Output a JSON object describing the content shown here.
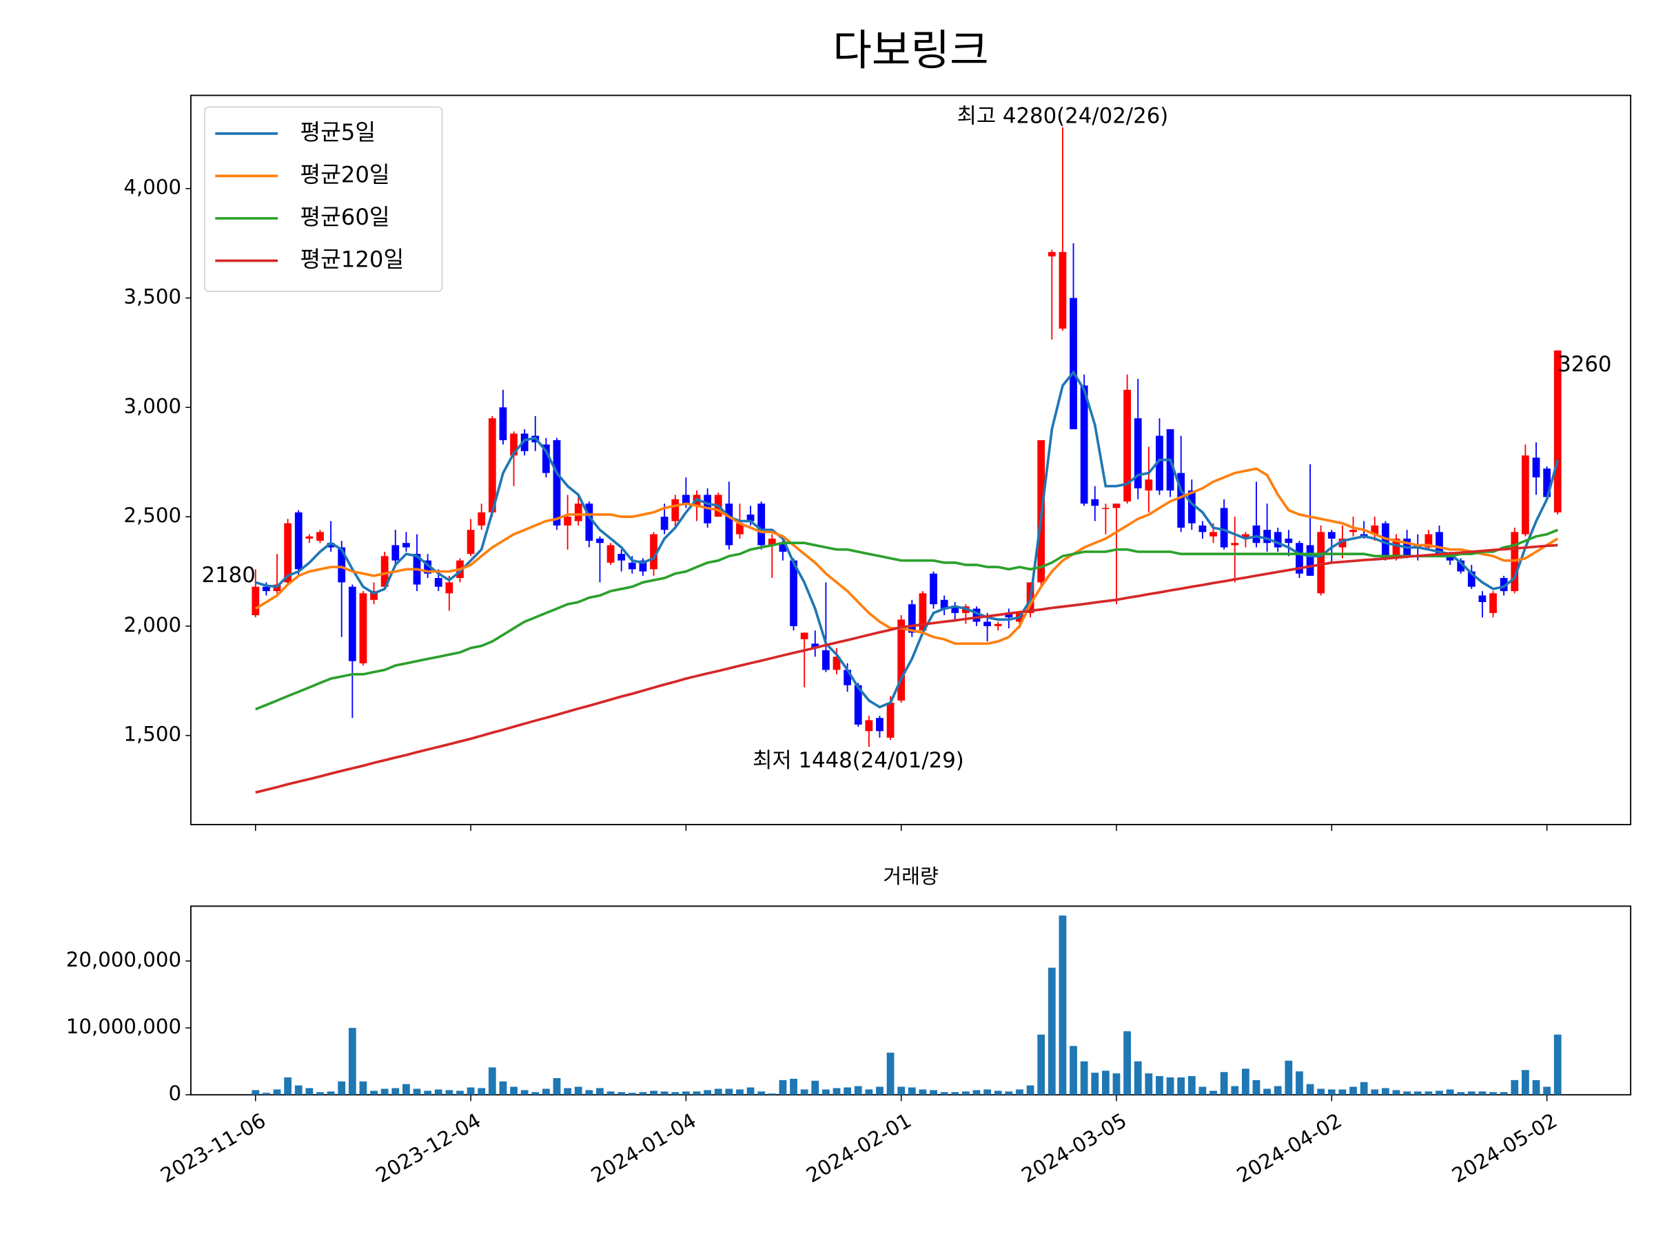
{
  "chart_data": {
    "type": "candlestick",
    "title": "다보링크",
    "volume_title": "거래량",
    "x": [
      "2023-11-06",
      "2023-11-07",
      "2023-11-08",
      "2023-11-09",
      "2023-11-10",
      "2023-11-13",
      "2023-11-14",
      "2023-11-15",
      "2023-11-16",
      "2023-11-17",
      "2023-11-20",
      "2023-11-21",
      "2023-11-22",
      "2023-11-23",
      "2023-11-24",
      "2023-11-27",
      "2023-11-28",
      "2023-11-29",
      "2023-11-30",
      "2023-12-01",
      "2023-12-04",
      "2023-12-05",
      "2023-12-06",
      "2023-12-07",
      "2023-12-08",
      "2023-12-11",
      "2023-12-12",
      "2023-12-13",
      "2023-12-14",
      "2023-12-15",
      "2023-12-18",
      "2023-12-19",
      "2023-12-20",
      "2023-12-21",
      "2023-12-22",
      "2023-12-26",
      "2023-12-27",
      "2023-12-28",
      "2024-01-02",
      "2024-01-03",
      "2024-01-04",
      "2024-01-05",
      "2024-01-08",
      "2024-01-09",
      "2024-01-10",
      "2024-01-11",
      "2024-01-12",
      "2024-01-15",
      "2024-01-16",
      "2024-01-17",
      "2024-01-18",
      "2024-01-19",
      "2024-01-22",
      "2024-01-23",
      "2024-01-24",
      "2024-01-25",
      "2024-01-26",
      "2024-01-29",
      "2024-01-30",
      "2024-01-31",
      "2024-02-01",
      "2024-02-02",
      "2024-02-05",
      "2024-02-06",
      "2024-02-07",
      "2024-02-08",
      "2024-02-13",
      "2024-02-14",
      "2024-02-15",
      "2024-02-16",
      "2024-02-19",
      "2024-02-20",
      "2024-02-21",
      "2024-02-22",
      "2024-02-23",
      "2024-02-26",
      "2024-02-27",
      "2024-02-28",
      "2024-02-29",
      "2024-03-04",
      "2024-03-05",
      "2024-03-06",
      "2024-03-07",
      "2024-03-08",
      "2024-03-11",
      "2024-03-12",
      "2024-03-13",
      "2024-03-14",
      "2024-03-15",
      "2024-03-18",
      "2024-03-19",
      "2024-03-20",
      "2024-03-21",
      "2024-03-22",
      "2024-03-25",
      "2024-03-26",
      "2024-03-27",
      "2024-03-28",
      "2024-03-29",
      "2024-04-01",
      "2024-04-02",
      "2024-04-03",
      "2024-04-04",
      "2024-04-05",
      "2024-04-08",
      "2024-04-09",
      "2024-04-11",
      "2024-04-12",
      "2024-04-15",
      "2024-04-16",
      "2024-04-17",
      "2024-04-18",
      "2024-04-19",
      "2024-04-22",
      "2024-04-23",
      "2024-04-24",
      "2024-04-25",
      "2024-04-26",
      "2024-04-29",
      "2024-04-30",
      "2024-05-02",
      "2024-05-03"
    ],
    "open": [
      2050,
      2180,
      2160,
      2200,
      2520,
      2400,
      2390,
      2380,
      2360,
      2180,
      1830,
      2120,
      2180,
      2370,
      2380,
      2330,
      2300,
      2220,
      2150,
      2220,
      2330,
      2460,
      2520,
      3000,
      2780,
      2880,
      2870,
      2830,
      2850,
      2460,
      2480,
      2560,
      2400,
      2290,
      2330,
      2290,
      2300,
      2260,
      2500,
      2480,
      2600,
      2550,
      2600,
      2500,
      2560,
      2420,
      2510,
      2560,
      2370,
      2380,
      2300,
      1940,
      1920,
      1890,
      1800,
      1800,
      1730,
      1520,
      1580,
      1490,
      1660,
      2100,
      1980,
      2240,
      2120,
      2090,
      2060,
      2080,
      2020,
      2000,
      2060,
      2020,
      2060,
      2200,
      3690,
      3360,
      3500,
      3100,
      2580,
      2540,
      2540,
      2570,
      2950,
      2620,
      2870,
      2900,
      2700,
      2620,
      2460,
      2410,
      2540,
      2370,
      2400,
      2460,
      2440,
      2430,
      2400,
      2380,
      2370,
      2150,
      2430,
      2360,
      2430,
      2420,
      2420,
      2470,
      2310,
      2400,
      2370,
      2360,
      2430,
      2330,
      2300,
      2250,
      2140,
      2060,
      2220,
      2160,
      2420,
      2770,
      2720,
      2520
    ],
    "high": [
      2260,
      2200,
      2330,
      2490,
      2530,
      2420,
      2440,
      2480,
      2390,
      2190,
      2160,
      2200,
      2340,
      2440,
      2430,
      2420,
      2330,
      2260,
      2230,
      2310,
      2490,
      2560,
      2960,
      3080,
      2890,
      2900,
      2960,
      2860,
      2860,
      2600,
      2600,
      2570,
      2410,
      2380,
      2350,
      2320,
      2310,
      2430,
      2560,
      2600,
      2680,
      2620,
      2630,
      2610,
      2660,
      2560,
      2550,
      2570,
      2420,
      2410,
      2310,
      1970,
      1980,
      2200,
      1900,
      1830,
      1740,
      1590,
      1590,
      1680,
      2050,
      2120,
      2160,
      2250,
      2140,
      2110,
      2100,
      2090,
      2060,
      2020,
      2080,
      2070,
      2200,
      2850,
      3720,
      4280,
      3750,
      3150,
      2640,
      2560,
      2560,
      3150,
      3130,
      2820,
      2950,
      2900,
      2870,
      2670,
      2480,
      2470,
      2580,
      2500,
      2430,
      2660,
      2560,
      2450,
      2440,
      2390,
      2740,
      2460,
      2440,
      2460,
      2500,
      2480,
      2500,
      2480,
      2420,
      2440,
      2420,
      2440,
      2460,
      2340,
      2310,
      2280,
      2160,
      2160,
      2230,
      2450,
      2830,
      2840,
      2730,
      3260
    ],
    "low": [
      2040,
      2140,
      2150,
      2190,
      2230,
      2380,
      2380,
      2340,
      1950,
      1580,
      1820,
      2100,
      2170,
      2280,
      2340,
      2160,
      2220,
      2160,
      2070,
      2200,
      2320,
      2440,
      2500,
      2830,
      2640,
      2780,
      2800,
      2680,
      2440,
      2350,
      2460,
      2360,
      2200,
      2280,
      2250,
      2240,
      2230,
      2230,
      2420,
      2450,
      2540,
      2480,
      2450,
      2500,
      2350,
      2400,
      2460,
      2350,
      2220,
      2300,
      1980,
      1720,
      1860,
      1790,
      1780,
      1700,
      1540,
      1448,
      1490,
      1480,
      1650,
      1950,
      1960,
      2080,
      2050,
      2020,
      2010,
      2000,
      1930,
      1980,
      1990,
      1990,
      2040,
      2180,
      3310,
      3350,
      2900,
      2550,
      2480,
      2420,
      2100,
      2560,
      2580,
      2520,
      2600,
      2590,
      2430,
      2440,
      2400,
      2380,
      2350,
      2200,
      2360,
      2360,
      2340,
      2340,
      2320,
      2220,
      2230,
      2140,
      2290,
      2310,
      2410,
      2400,
      2390,
      2300,
      2300,
      2310,
      2300,
      2350,
      2320,
      2280,
      2240,
      2170,
      2040,
      2040,
      2140,
      2150,
      2410,
      2600,
      2570,
      2510
    ],
    "close": [
      2180,
      2160,
      2190,
      2470,
      2260,
      2410,
      2430,
      2360,
      2200,
      1840,
      2150,
      2160,
      2320,
      2300,
      2360,
      2190,
      2240,
      2180,
      2200,
      2300,
      2440,
      2520,
      2950,
      2850,
      2880,
      2800,
      2840,
      2700,
      2460,
      2500,
      2560,
      2390,
      2380,
      2370,
      2300,
      2260,
      2250,
      2420,
      2440,
      2580,
      2560,
      2600,
      2470,
      2600,
      2370,
      2470,
      2480,
      2370,
      2400,
      2340,
      2000,
      1970,
      1900,
      1800,
      1860,
      1730,
      1550,
      1570,
      1520,
      1650,
      2030,
      1970,
      2150,
      2100,
      2080,
      2060,
      2090,
      2020,
      2000,
      2010,
      2040,
      2060,
      2200,
      2850,
      3710,
      3710,
      2900,
      2560,
      2550,
      2540,
      2560,
      3080,
      2630,
      2670,
      2620,
      2620,
      2450,
      2470,
      2430,
      2430,
      2360,
      2380,
      2420,
      2380,
      2380,
      2360,
      2380,
      2240,
      2230,
      2430,
      2400,
      2400,
      2440,
      2410,
      2460,
      2310,
      2400,
      2320,
      2360,
      2420,
      2330,
      2300,
      2250,
      2180,
      2110,
      2150,
      2160,
      2430,
      2780,
      2680,
      2590,
      3260
    ],
    "volume": [
      700000,
      300000,
      800000,
      2600000,
      1400000,
      1000000,
      400000,
      500000,
      2000000,
      10000000,
      2000000,
      600000,
      900000,
      1000000,
      1600000,
      900000,
      600000,
      800000,
      700000,
      600000,
      1100000,
      1000000,
      4100000,
      2000000,
      1200000,
      700000,
      400000,
      900000,
      2500000,
      1000000,
      1200000,
      700000,
      1000000,
      500000,
      400000,
      300000,
      400000,
      600000,
      500000,
      400000,
      500000,
      500000,
      700000,
      900000,
      900000,
      800000,
      1100000,
      500000,
      200000,
      2200000,
      2400000,
      800000,
      2100000,
      800000,
      1000000,
      1100000,
      1300000,
      800000,
      1200000,
      6300000,
      1200000,
      1100000,
      800000,
      700000,
      400000,
      400000,
      500000,
      700000,
      800000,
      600000,
      500000,
      800000,
      1400000,
      9000000,
      19000000,
      26800000,
      7300000,
      5000000,
      3300000,
      3600000,
      3200000,
      9500000,
      5000000,
      3200000,
      2800000,
      2600000,
      2600000,
      2800000,
      1200000,
      600000,
      3400000,
      1300000,
      3900000,
      2200000,
      900000,
      1300000,
      5100000,
      3500000,
      1600000,
      900000,
      800000,
      800000,
      1200000,
      1900000,
      800000,
      1000000,
      700000,
      500000,
      500000,
      500000,
      600000,
      800000,
      400000,
      500000,
      500000,
      400000,
      400000,
      2200000,
      3700000,
      2200000,
      1200000,
      9000000
    ],
    "series": [
      {
        "name": "평균5일",
        "color": "#1f77b4",
        "values": [
          2200,
          2185,
          2180,
          2230,
          2250,
          2290,
          2340,
          2380,
          2350,
          2260,
          2180,
          2150,
          2170,
          2280,
          2330,
          2320,
          2280,
          2240,
          2210,
          2250,
          2300,
          2350,
          2520,
          2700,
          2790,
          2850,
          2860,
          2800,
          2700,
          2640,
          2600,
          2500,
          2440,
          2400,
          2360,
          2300,
          2290,
          2310,
          2400,
          2450,
          2520,
          2580,
          2560,
          2550,
          2500,
          2480,
          2480,
          2440,
          2440,
          2400,
          2290,
          2200,
          2080,
          1920,
          1870,
          1800,
          1720,
          1660,
          1630,
          1650,
          1760,
          1850,
          1970,
          2060,
          2080,
          2090,
          2080,
          2060,
          2040,
          2030,
          2030,
          2040,
          2120,
          2500,
          2900,
          3100,
          3160,
          3080,
          2920,
          2640,
          2640,
          2650,
          2690,
          2700,
          2760,
          2760,
          2620,
          2560,
          2520,
          2450,
          2440,
          2420,
          2400,
          2410,
          2400,
          2380,
          2360,
          2330,
          2320,
          2320,
          2360,
          2390,
          2400,
          2410,
          2400,
          2380,
          2370,
          2360,
          2360,
          2350,
          2340,
          2330,
          2290,
          2240,
          2200,
          2170,
          2180,
          2220,
          2360,
          2480,
          2580,
          2760
        ]
      },
      {
        "name": "평균20일",
        "color": "#ff7f0e",
        "values": [
          2080,
          2110,
          2140,
          2190,
          2230,
          2250,
          2260,
          2270,
          2270,
          2250,
          2240,
          2230,
          2240,
          2250,
          2260,
          2260,
          2250,
          2250,
          2250,
          2260,
          2280,
          2320,
          2360,
          2390,
          2420,
          2440,
          2460,
          2480,
          2490,
          2510,
          2510,
          2510,
          2510,
          2510,
          2500,
          2500,
          2510,
          2520,
          2540,
          2550,
          2560,
          2550,
          2540,
          2530,
          2500,
          2470,
          2450,
          2430,
          2430,
          2410,
          2370,
          2330,
          2290,
          2240,
          2200,
          2160,
          2110,
          2060,
          2020,
          1990,
          1990,
          1980,
          1970,
          1950,
          1940,
          1920,
          1920,
          1920,
          1920,
          1930,
          1950,
          2000,
          2100,
          2180,
          2250,
          2300,
          2330,
          2360,
          2380,
          2400,
          2430,
          2460,
          2490,
          2510,
          2540,
          2570,
          2590,
          2610,
          2630,
          2660,
          2680,
          2700,
          2710,
          2720,
          2690,
          2600,
          2530,
          2510,
          2500,
          2490,
          2480,
          2470,
          2450,
          2440,
          2420,
          2400,
          2390,
          2380,
          2370,
          2370,
          2360,
          2350,
          2350,
          2340,
          2330,
          2320,
          2300,
          2300,
          2310,
          2340,
          2370,
          2400
        ]
      },
      {
        "name": "평균60일",
        "color": "#2ca02c",
        "values": [
          1620,
          1640,
          1660,
          1680,
          1700,
          1720,
          1740,
          1760,
          1770,
          1780,
          1780,
          1790,
          1800,
          1820,
          1830,
          1840,
          1850,
          1860,
          1870,
          1880,
          1900,
          1910,
          1930,
          1960,
          1990,
          2020,
          2040,
          2060,
          2080,
          2100,
          2110,
          2130,
          2140,
          2160,
          2170,
          2180,
          2200,
          2210,
          2220,
          2240,
          2250,
          2270,
          2290,
          2300,
          2320,
          2330,
          2350,
          2360,
          2370,
          2380,
          2380,
          2380,
          2370,
          2360,
          2350,
          2350,
          2340,
          2330,
          2320,
          2310,
          2300,
          2300,
          2300,
          2300,
          2290,
          2290,
          2280,
          2280,
          2270,
          2270,
          2260,
          2270,
          2260,
          2270,
          2290,
          2320,
          2330,
          2340,
          2340,
          2340,
          2350,
          2350,
          2340,
          2340,
          2340,
          2340,
          2330,
          2330,
          2330,
          2330,
          2330,
          2330,
          2330,
          2330,
          2330,
          2330,
          2330,
          2330,
          2330,
          2330,
          2330,
          2330,
          2330,
          2330,
          2320,
          2320,
          2320,
          2320,
          2320,
          2320,
          2320,
          2320,
          2330,
          2330,
          2340,
          2340,
          2360,
          2370,
          2390,
          2410,
          2420,
          2440
        ]
      },
      {
        "name": "평균120일",
        "color": "#d62728",
        "values": [
          1240,
          1252,
          1264,
          1277,
          1289,
          1301,
          1313,
          1326,
          1338,
          1350,
          1362,
          1375,
          1387,
          1399,
          1411,
          1424,
          1436,
          1448,
          1460,
          1473,
          1485,
          1499,
          1513,
          1526,
          1540,
          1554,
          1568,
          1581,
          1595,
          1609,
          1623,
          1636,
          1650,
          1664,
          1678,
          1691,
          1705,
          1719,
          1733,
          1746,
          1760,
          1772,
          1784,
          1795,
          1807,
          1819,
          1831,
          1842,
          1854,
          1866,
          1878,
          1889,
          1901,
          1913,
          1925,
          1936,
          1948,
          1960,
          1972,
          1983,
          1995,
          2001,
          2008,
          2014,
          2020,
          2026,
          2033,
          2039,
          2045,
          2051,
          2058,
          2064,
          2070,
          2076,
          2083,
          2089,
          2095,
          2101,
          2108,
          2114,
          2120,
          2129,
          2137,
          2146,
          2154,
          2163,
          2171,
          2180,
          2188,
          2197,
          2205,
          2214,
          2222,
          2231,
          2239,
          2248,
          2256,
          2265,
          2273,
          2282,
          2290,
          2294,
          2298,
          2302,
          2305,
          2309,
          2313,
          2317,
          2321,
          2325,
          2328,
          2332,
          2336,
          2340,
          2344,
          2348,
          2351,
          2355,
          2359,
          2363,
          2367,
          2370
        ]
      }
    ],
    "up_color": "#ff0000",
    "down_color": "#0000ff",
    "volume_color": "#1f77b4",
    "ylim": [
      1093,
      4426
    ],
    "yticks": [
      {
        "value": 1500,
        "label": "1,500"
      },
      {
        "value": 2000,
        "label": "2,000"
      },
      {
        "value": 2500,
        "label": "2,500"
      },
      {
        "value": 3000,
        "label": "3,000"
      },
      {
        "value": 3500,
        "label": "3,500"
      },
      {
        "value": 4000,
        "label": "4,000"
      }
    ],
    "volume_ylim": [
      0,
      28200000
    ],
    "volume_yticks": [
      0,
      {
        "value": 10000000,
        "label": "10,000,000"
      },
      {
        "value": 20000000,
        "label": "20,000,000"
      }
    ],
    "xticks": [
      "2023-11-06",
      "2023-12-04",
      "2024-01-04",
      "2024-02-01",
      "2024-03-05",
      "2024-04-02",
      "2024-05-02"
    ],
    "legend": "upper left",
    "high_label": {
      "text": "최고 4280(24/02/26)",
      "x": "2024-02-26",
      "y": 4280,
      "color": "#ff0000"
    },
    "low_label": {
      "text": "최저 1448(24/01/29)",
      "x": "2024-01-29",
      "y": 1448,
      "color": "#0000ff"
    },
    "first_label": {
      "text": "2180",
      "x": "2023-11-06",
      "y": 2180
    },
    "last_label": {
      "text": "3260",
      "x": "2024-05-03",
      "y": 3260
    }
  }
}
